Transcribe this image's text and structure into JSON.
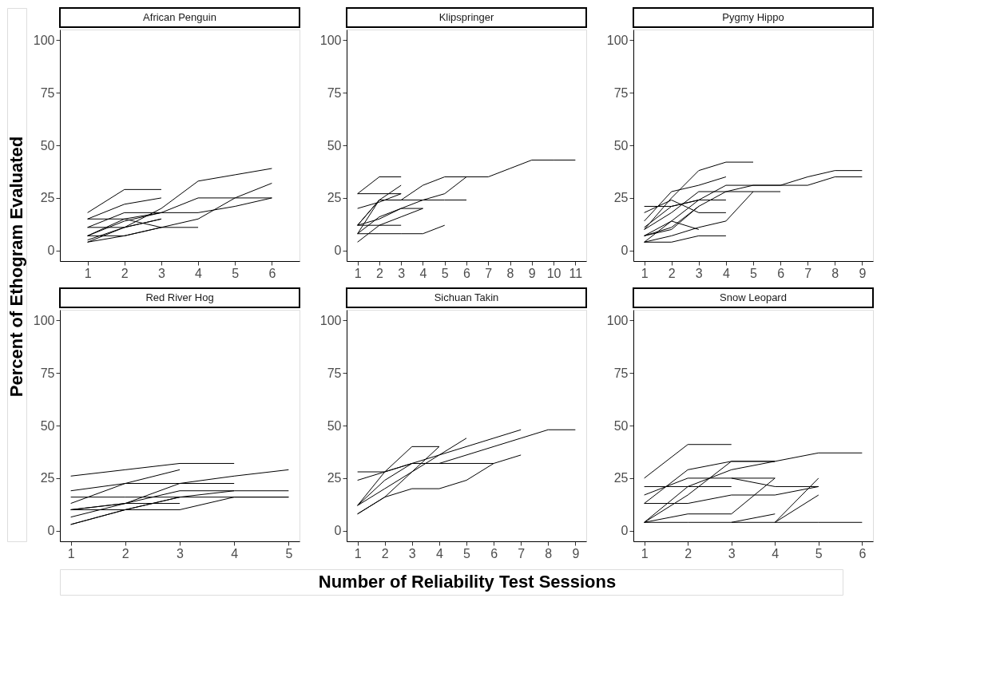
{
  "chart_data": [
    {
      "type": "line",
      "title": "African Penguin",
      "ylabel": "Percent of Ethogram Evaluated",
      "xlim": [
        0.25,
        6.75
      ],
      "xticks": [
        1,
        2,
        3,
        4,
        5,
        6
      ],
      "ylim": [
        -5,
        105
      ],
      "yticks": [
        0,
        25,
        50,
        75,
        100
      ],
      "grid": false,
      "legend": false,
      "series": [
        {
          "color": "#000000",
          "x": [
            1,
            2,
            3
          ],
          "values": [
            18,
            29,
            29
          ]
        },
        {
          "color": "#000000",
          "x": [
            1,
            2,
            3
          ],
          "values": [
            15,
            22,
            25
          ]
        },
        {
          "color": "#000000",
          "x": [
            1,
            2,
            3,
            4,
            5,
            6
          ],
          "values": [
            5,
            11,
            20,
            33,
            36,
            39
          ]
        },
        {
          "color": "#000000",
          "x": [
            1,
            2,
            3,
            4,
            5,
            6
          ],
          "values": [
            7,
            15,
            18,
            25,
            25,
            25
          ]
        },
        {
          "color": "#000000",
          "x": [
            1,
            2,
            3,
            4,
            5,
            6
          ],
          "values": [
            4,
            7,
            11,
            15,
            25,
            32
          ]
        },
        {
          "color": "#000000",
          "x": [
            1,
            2,
            3,
            4,
            5,
            6
          ],
          "values": [
            11,
            18,
            18,
            18,
            21,
            25
          ]
        },
        {
          "color": "#000000",
          "x": [
            1,
            2,
            3
          ],
          "values": [
            11,
            11,
            15
          ]
        },
        {
          "color": "#000000",
          "x": [
            1,
            2,
            3
          ],
          "values": [
            7,
            14,
            18
          ]
        },
        {
          "color": "#000000",
          "x": [
            1,
            2,
            3
          ],
          "values": [
            4,
            11,
            15
          ]
        },
        {
          "color": "#000000",
          "x": [
            1,
            2,
            3,
            4
          ],
          "values": [
            7,
            7,
            11,
            11
          ]
        },
        {
          "color": "#000000",
          "x": [
            1,
            2,
            3
          ],
          "values": [
            15,
            15,
            11
          ]
        }
      ]
    },
    {
      "type": "line",
      "title": "Klipspringer",
      "xlim": [
        0.5,
        11.5
      ],
      "xticks": [
        1,
        2,
        3,
        4,
        5,
        6,
        7,
        8,
        9,
        10,
        11
      ],
      "ylim": [
        -5,
        105
      ],
      "yticks": [
        0,
        25,
        50,
        75,
        100
      ],
      "grid": false,
      "legend": false,
      "series": [
        {
          "color": "#000000",
          "x": [
            1,
            2,
            3
          ],
          "values": [
            27,
            35,
            35
          ]
        },
        {
          "color": "#000000",
          "x": [
            1,
            2,
            3
          ],
          "values": [
            27,
            27,
            27
          ]
        },
        {
          "color": "#000000",
          "x": [
            1,
            2,
            3,
            4,
            5,
            6,
            7,
            8,
            9,
            10,
            11
          ],
          "values": [
            12,
            24,
            24,
            31,
            35,
            35,
            35,
            39,
            43,
            43,
            43
          ]
        },
        {
          "color": "#000000",
          "x": [
            1,
            2,
            3
          ],
          "values": [
            20,
            23,
            27
          ]
        },
        {
          "color": "#000000",
          "x": [
            1,
            2,
            3,
            4,
            5,
            6
          ],
          "values": [
            12,
            15,
            20,
            24,
            27,
            35
          ]
        },
        {
          "color": "#000000",
          "x": [
            1,
            2,
            3,
            4,
            5,
            6
          ],
          "values": [
            12,
            24,
            24,
            24,
            24,
            24
          ]
        },
        {
          "color": "#000000",
          "x": [
            1,
            2,
            3,
            4,
            5
          ],
          "values": [
            8,
            8,
            8,
            8,
            12
          ]
        },
        {
          "color": "#000000",
          "x": [
            1,
            2,
            3
          ],
          "values": [
            12,
            12,
            12
          ]
        },
        {
          "color": "#000000",
          "x": [
            1,
            2,
            3,
            4
          ],
          "values": [
            4,
            12,
            16,
            20
          ]
        },
        {
          "color": "#000000",
          "x": [
            1,
            2,
            3,
            4
          ],
          "values": [
            8,
            16,
            20,
            20
          ]
        },
        {
          "color": "#000000",
          "x": [
            1,
            2,
            3
          ],
          "values": [
            8,
            24,
            31
          ]
        }
      ]
    },
    {
      "type": "line",
      "title": "Pygmy Hippo",
      "xlim": [
        0.6,
        9.4
      ],
      "xticks": [
        1,
        2,
        3,
        4,
        5,
        6,
        7,
        8,
        9
      ],
      "ylim": [
        -5,
        105
      ],
      "yticks": [
        0,
        25,
        50,
        75,
        100
      ],
      "grid": false,
      "legend": false,
      "series": [
        {
          "color": "#000000",
          "x": [
            1,
            2,
            3,
            4,
            5
          ],
          "values": [
            10,
            25,
            38,
            42,
            42
          ]
        },
        {
          "color": "#000000",
          "x": [
            1,
            2,
            3,
            4,
            5,
            6,
            7,
            8,
            9
          ],
          "values": [
            4,
            14,
            24,
            31,
            31,
            31,
            35,
            38,
            38
          ]
        },
        {
          "color": "#000000",
          "x": [
            1,
            2,
            3,
            4,
            5,
            6,
            7,
            8,
            9
          ],
          "values": [
            7,
            11,
            21,
            28,
            31,
            31,
            31,
            35,
            35
          ]
        },
        {
          "color": "#000000",
          "x": [
            1,
            2,
            3,
            4,
            5,
            6
          ],
          "values": [
            10,
            18,
            28,
            28,
            28,
            28
          ]
        },
        {
          "color": "#000000",
          "x": [
            1,
            2,
            3,
            4
          ],
          "values": [
            21,
            21,
            24,
            24
          ]
        },
        {
          "color": "#000000",
          "x": [
            1,
            2,
            3,
            4
          ],
          "values": [
            14,
            28,
            31,
            35
          ]
        },
        {
          "color": "#000000",
          "x": [
            1,
            2,
            3,
            4
          ],
          "values": [
            18,
            24,
            18,
            18
          ]
        },
        {
          "color": "#000000",
          "x": [
            1,
            2,
            3,
            4,
            5
          ],
          "values": [
            4,
            7,
            11,
            14,
            28
          ]
        },
        {
          "color": "#000000",
          "x": [
            1,
            2,
            3
          ],
          "values": [
            7,
            10,
            21
          ]
        },
        {
          "color": "#000000",
          "x": [
            1,
            2,
            3,
            4
          ],
          "values": [
            4,
            4,
            7,
            7
          ]
        },
        {
          "color": "#000000",
          "x": [
            1,
            2,
            3
          ],
          "values": [
            11,
            21,
            24
          ]
        },
        {
          "color": "#000000",
          "x": [
            1,
            2,
            3
          ],
          "values": [
            7,
            14,
            10
          ]
        }
      ]
    },
    {
      "type": "line",
      "title": "Red River Hog",
      "xlim": [
        0.8,
        5.2
      ],
      "xticks": [
        1,
        2,
        3,
        4,
        5
      ],
      "ylim": [
        -5,
        105
      ],
      "yticks": [
        0,
        25,
        50,
        75,
        100
      ],
      "grid": false,
      "legend": false,
      "series": [
        {
          "color": "#000000",
          "x": [
            1,
            2,
            3,
            4
          ],
          "values": [
            26,
            29,
            32,
            32
          ]
        },
        {
          "color": "#000000",
          "x": [
            1,
            2,
            3
          ],
          "values": [
            19,
            22.5,
            29
          ]
        },
        {
          "color": "#000000",
          "x": [
            1,
            2,
            3,
            4,
            5
          ],
          "values": [
            16,
            16,
            16,
            16,
            16
          ]
        },
        {
          "color": "#000000",
          "x": [
            1,
            2,
            3,
            4
          ],
          "values": [
            13,
            22.5,
            22.5,
            22.5
          ]
        },
        {
          "color": "#000000",
          "x": [
            1,
            2,
            3,
            4,
            5
          ],
          "values": [
            10,
            13,
            22.5,
            26,
            29
          ]
        },
        {
          "color": "#000000",
          "x": [
            1,
            2,
            3,
            4,
            5
          ],
          "values": [
            10,
            10,
            10,
            16,
            16
          ]
        },
        {
          "color": "#000000",
          "x": [
            1,
            2,
            3
          ],
          "values": [
            10,
            13,
            13
          ]
        },
        {
          "color": "#000000",
          "x": [
            1,
            2,
            3,
            4,
            5
          ],
          "values": [
            6.5,
            13,
            19,
            19,
            19
          ]
        },
        {
          "color": "#000000",
          "x": [
            1,
            2,
            3,
            4
          ],
          "values": [
            3,
            10,
            16,
            19
          ]
        },
        {
          "color": "#000000",
          "x": [
            1,
            2,
            3
          ],
          "values": [
            3,
            10,
            16
          ]
        }
      ]
    },
    {
      "type": "line",
      "title": "Sichuan Takin",
      "xlabel": "Number of Reliability Test Sessions",
      "xlim": [
        0.6,
        9.4
      ],
      "xticks": [
        1,
        2,
        3,
        4,
        5,
        6,
        7,
        8,
        9
      ],
      "ylim": [
        -5,
        105
      ],
      "yticks": [
        0,
        25,
        50,
        75,
        100
      ],
      "grid": false,
      "legend": false,
      "series": [
        {
          "color": "#000000",
          "x": [
            1,
            2,
            3,
            4,
            5,
            6
          ],
          "values": [
            28,
            28,
            32,
            32,
            32,
            32
          ]
        },
        {
          "color": "#000000",
          "x": [
            1,
            2,
            3,
            4,
            5,
            6,
            7,
            8,
            9
          ],
          "values": [
            24,
            28,
            32,
            32,
            36,
            40,
            44,
            48,
            48
          ]
        },
        {
          "color": "#000000",
          "x": [
            1,
            2,
            3,
            4,
            5,
            6,
            7
          ],
          "values": [
            12,
            24,
            32,
            36,
            40,
            44,
            48
          ]
        },
        {
          "color": "#000000",
          "x": [
            1,
            2,
            3,
            4,
            5,
            6,
            7
          ],
          "values": [
            8,
            16,
            20,
            20,
            24,
            32,
            36
          ]
        },
        {
          "color": "#000000",
          "x": [
            1,
            2,
            3,
            4
          ],
          "values": [
            12,
            20,
            28,
            40
          ]
        },
        {
          "color": "#000000",
          "x": [
            1,
            2,
            3,
            4,
            5
          ],
          "values": [
            8,
            16,
            28,
            36,
            44
          ]
        },
        {
          "color": "#000000",
          "x": [
            1,
            2,
            3,
            4
          ],
          "values": [
            12,
            28,
            40,
            40
          ]
        }
      ]
    },
    {
      "type": "line",
      "title": "Snow Leopard",
      "xlim": [
        0.75,
        6.25
      ],
      "xticks": [
        1,
        2,
        3,
        4,
        5,
        6
      ],
      "ylim": [
        -5,
        105
      ],
      "yticks": [
        0,
        25,
        50,
        75,
        100
      ],
      "grid": false,
      "legend": false,
      "series": [
        {
          "color": "#000000",
          "x": [
            1,
            2,
            3
          ],
          "values": [
            25,
            41,
            41
          ]
        },
        {
          "color": "#000000",
          "x": [
            1,
            2,
            3,
            4,
            5,
            6
          ],
          "values": [
            4,
            4,
            4,
            4,
            4,
            4
          ]
        },
        {
          "color": "#000000",
          "x": [
            1,
            2,
            3
          ],
          "values": [
            21,
            21,
            21
          ]
        },
        {
          "color": "#000000",
          "x": [
            1,
            2,
            3,
            4
          ],
          "values": [
            17,
            25,
            25,
            25
          ]
        },
        {
          "color": "#000000",
          "x": [
            1,
            2,
            3,
            4,
            5,
            6
          ],
          "values": [
            13,
            29,
            33,
            33,
            37,
            37
          ]
        },
        {
          "color": "#000000",
          "x": [
            1,
            2,
            3,
            4
          ],
          "values": [
            4,
            17,
            33,
            33
          ]
        },
        {
          "color": "#000000",
          "x": [
            1,
            2,
            3,
            4,
            5
          ],
          "values": [
            13,
            13,
            17,
            17,
            21
          ]
        },
        {
          "color": "#000000",
          "x": [
            1,
            2,
            3,
            4
          ],
          "values": [
            4,
            8,
            8,
            25
          ]
        },
        {
          "color": "#000000",
          "x": [
            3,
            4
          ],
          "values": [
            4,
            8
          ]
        },
        {
          "color": "#000000",
          "x": [
            4,
            5
          ],
          "values": [
            4,
            17
          ]
        },
        {
          "color": "#000000",
          "x": [
            4,
            5
          ],
          "values": [
            4,
            25
          ]
        },
        {
          "color": "#000000",
          "x": [
            3,
            4,
            5
          ],
          "values": [
            25,
            21,
            21
          ]
        },
        {
          "color": "#000000",
          "x": [
            1,
            2,
            3,
            4
          ],
          "values": [
            4,
            21,
            29,
            33
          ]
        }
      ]
    }
  ]
}
